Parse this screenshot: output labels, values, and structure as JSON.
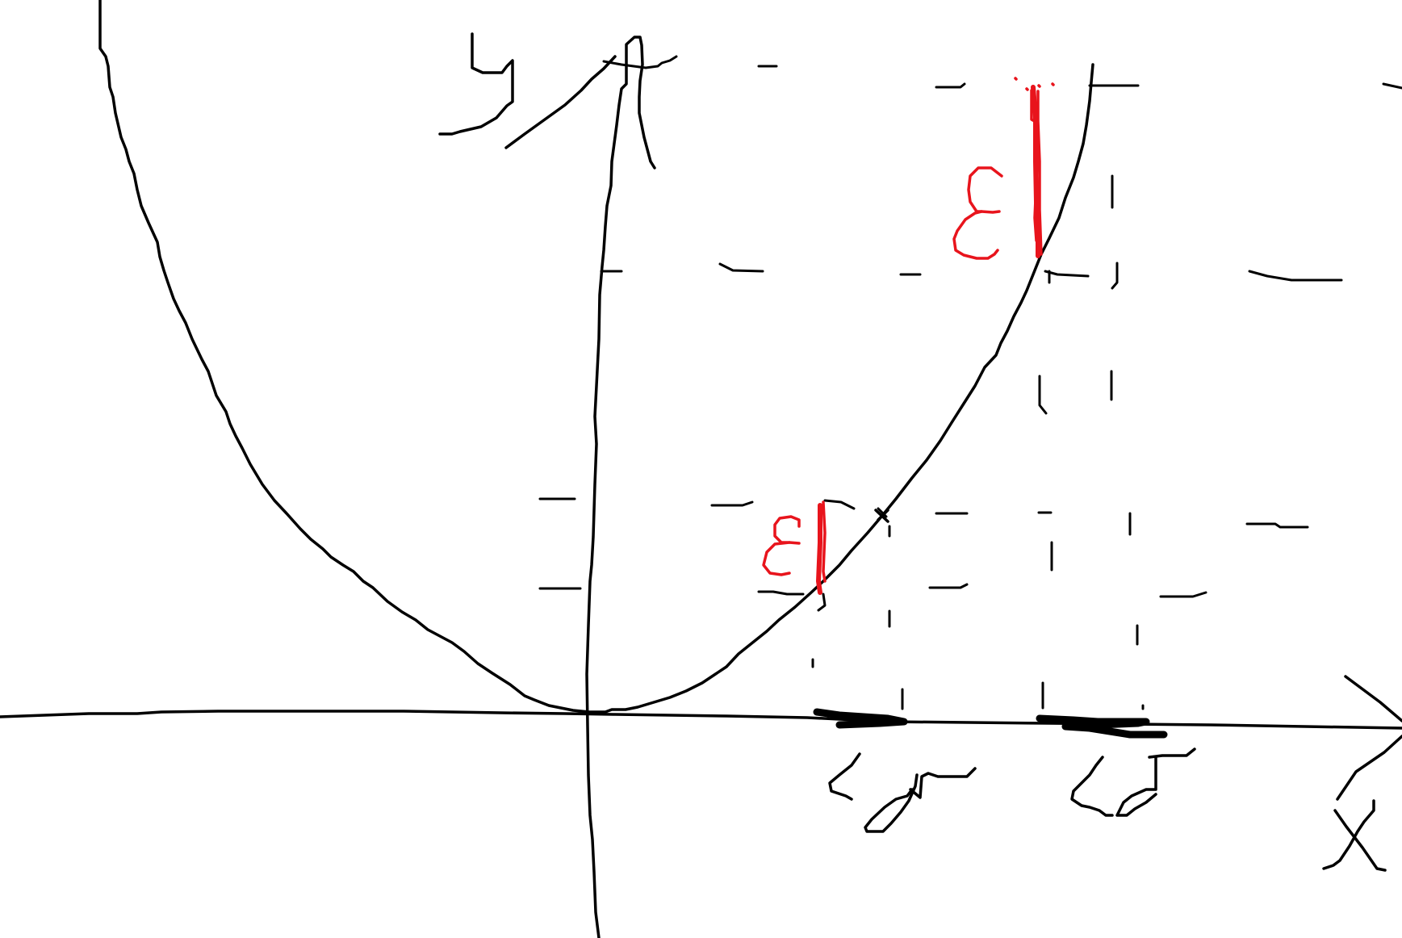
{
  "diagram": {
    "type": "hand-drawn function sketch",
    "background": "#ffffff",
    "ink_color": "#000000",
    "accent_color": "#e8141c",
    "handwritten_labels": {
      "y_axis": "y",
      "x_axis": "x",
      "epsilon_lower": "ε",
      "epsilon_upper": "ε",
      "delta_lower": "δ",
      "delta_upper": "δ"
    }
  }
}
